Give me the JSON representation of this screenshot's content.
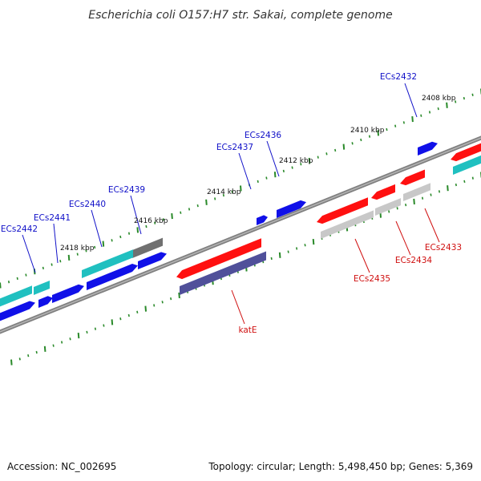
{
  "title": "Escherichia coli O157:H7 str. Sakai, complete genome",
  "footer": {
    "accession": "Accession: NC_002695",
    "summary": "Topology: circular; Length: 5,498,450 bp; Genes: 5,369"
  },
  "ruler_labels": [
    "2408 kbp",
    "2410 kbp",
    "2412 kbp",
    "2414 kbp",
    "2416 kbp",
    "2418 kbp"
  ],
  "colors": {
    "forward_label": "#1010c8",
    "reverse_label": "#d01010",
    "backbone": "#808080",
    "tick": "#2a8a2a",
    "red_gene": "#ff1010",
    "blue_gene": "#1010e8",
    "cyan_gene": "#20c0c0",
    "grey_gene": "#c8c8c8",
    "dark_grey_gene": "#707070",
    "navy_gene": "#50509a"
  },
  "gene_labels": [
    {
      "text": "ECs2432",
      "strand": "forward"
    },
    {
      "text": "ECs2436",
      "strand": "forward"
    },
    {
      "text": "ECs2437",
      "strand": "forward"
    },
    {
      "text": "ECs2439",
      "strand": "forward"
    },
    {
      "text": "ECs2440",
      "strand": "forward"
    },
    {
      "text": "ECs2441",
      "strand": "forward"
    },
    {
      "text": "ECs2442",
      "strand": "forward"
    },
    {
      "text": "katE",
      "strand": "reverse"
    },
    {
      "text": "ECs2435",
      "strand": "reverse"
    },
    {
      "text": "ECs2434",
      "strand": "reverse"
    },
    {
      "text": "ECs2433",
      "strand": "reverse"
    }
  ]
}
